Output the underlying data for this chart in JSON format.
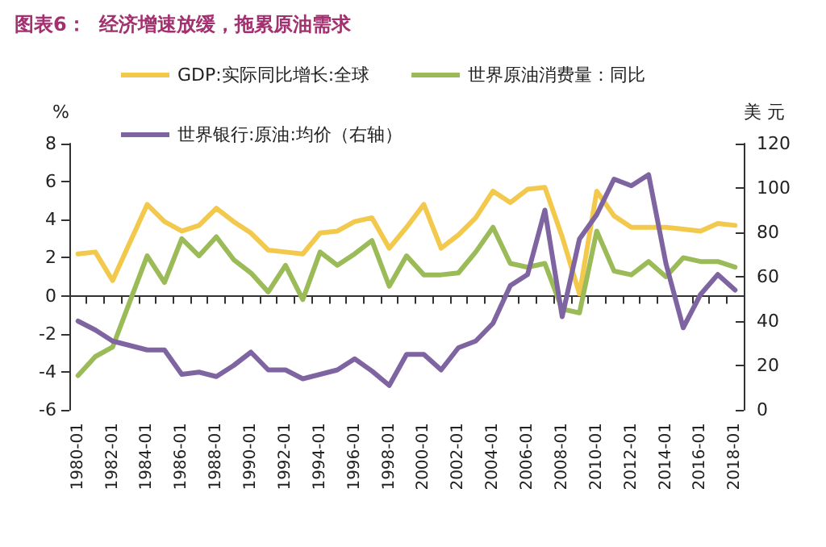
{
  "chart_data": {
    "type": "line",
    "title": "图表6：  经济增速放缓，拖累原油需求",
    "categories": [
      "1980-01",
      null,
      "1982-01",
      null,
      "1984-01",
      null,
      "1986-01",
      null,
      "1988-01",
      null,
      "1990-01",
      null,
      "1992-01",
      null,
      "1994-01",
      null,
      "1996-01",
      null,
      "1998-01",
      null,
      "2000-01",
      null,
      "2002-01",
      null,
      "2004-01",
      null,
      "2006-01",
      null,
      "2008-01",
      null,
      "2010-01",
      null,
      "2012-01",
      null,
      "2014-01",
      null,
      "2016-01",
      null,
      "2018-01"
    ],
    "series": [
      {
        "name": "GDP:实际同比增长:全球",
        "color": "#f2c94c",
        "values": [
          2.2,
          2.3,
          0.8,
          2.8,
          4.8,
          3.9,
          3.4,
          3.7,
          4.6,
          3.9,
          3.3,
          2.4,
          2.3,
          2.2,
          3.3,
          3.4,
          3.9,
          4.1,
          2.5,
          3.6,
          4.8,
          2.5,
          3.2,
          4.1,
          5.5,
          4.9,
          5.6,
          5.7,
          3.1,
          0.1,
          5.5,
          4.2,
          3.6,
          3.6,
          3.6,
          3.5,
          3.4,
          3.8,
          3.7
        ]
      },
      {
        "name": "世界原油消费量：同比",
        "color": "#9bbb59",
        "values": [
          -4.2,
          -3.2,
          -2.7,
          -0.3,
          2.1,
          0.7,
          3.0,
          2.1,
          3.1,
          1.9,
          1.2,
          0.2,
          1.6,
          -0.2,
          2.3,
          1.6,
          2.2,
          2.9,
          0.5,
          2.1,
          1.1,
          1.1,
          1.2,
          2.3,
          3.6,
          1.7,
          1.5,
          1.7,
          -0.7,
          -0.9,
          3.4,
          1.3,
          1.1,
          1.8,
          1.0,
          2.0,
          1.8,
          1.8,
          1.5
        ]
      },
      {
        "name": "世界银行:原油:均价（右轴）",
        "color": "#7f64a2",
        "axis": "y2",
        "values": [
          40,
          36,
          31,
          29,
          27,
          27,
          16,
          17,
          15,
          20,
          26,
          18,
          18,
          14,
          16,
          18,
          23,
          17.5,
          11,
          25,
          25,
          18,
          28,
          31,
          39,
          56,
          61,
          90,
          42,
          77,
          88,
          104,
          101,
          106,
          66,
          37,
          52,
          61,
          54
        ]
      }
    ],
    "ylabel": "%",
    "y2label": "美 元",
    "ylim": [
      -6,
      8
    ],
    "yticks": [
      -6,
      -4,
      -2,
      0,
      2,
      4,
      6,
      8
    ],
    "y2lim": [
      0,
      120
    ],
    "y2ticks": [
      0,
      20,
      40,
      60,
      80,
      100,
      120
    ],
    "legend": "top",
    "marker": "none",
    "line_style": "solid"
  }
}
